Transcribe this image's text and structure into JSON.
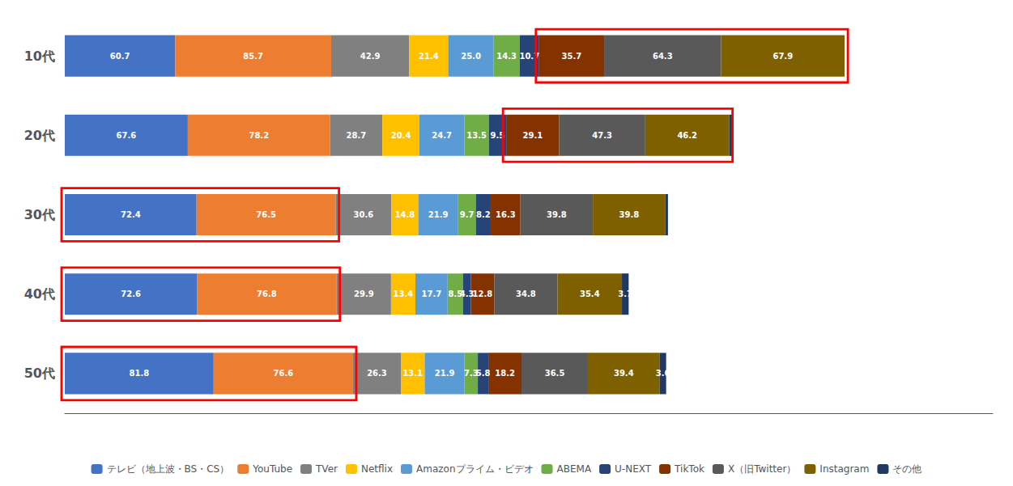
{
  "chart_data": {
    "type": "bar",
    "orientation": "horizontal",
    "stacked": true,
    "categories": [
      "10代",
      "20代",
      "30代",
      "40代",
      "50代"
    ],
    "series": [
      {
        "name": "テレビ（地上波・BS・CS）",
        "color": "#4472C4",
        "values": [
          60.7,
          67.6,
          72.4,
          72.6,
          81.8
        ],
        "value_labels": [
          "60.7",
          "67.6",
          "72.4",
          "72.6",
          "81.8"
        ]
      },
      {
        "name": "YouTube",
        "color": "#ED7D31",
        "values": [
          85.7,
          78.2,
          76.5,
          76.8,
          76.6
        ],
        "value_labels": [
          "85.7",
          "78.2",
          "76.5",
          "76.8",
          "76.6"
        ]
      },
      {
        "name": "TVer",
        "color": "#808080",
        "values": [
          42.9,
          28.7,
          30.6,
          29.9,
          26.3
        ],
        "value_labels": [
          "42.9",
          "28.7",
          "30.6",
          "29.9",
          "26.3"
        ]
      },
      {
        "name": "Netflix",
        "color": "#FFC000",
        "values": [
          21.4,
          20.4,
          14.8,
          13.4,
          13.1
        ],
        "value_labels": [
          "21.4",
          "20.4",
          "14.8",
          "13.4",
          "13.1"
        ]
      },
      {
        "name": "Amazonプライム・ビデオ",
        "color": "#5B9BD5",
        "values": [
          25.0,
          24.7,
          21.9,
          17.7,
          21.9
        ],
        "value_labels": [
          "25.0",
          "24.7",
          "21.9",
          "17.7",
          "21.9"
        ]
      },
      {
        "name": "ABEMA",
        "color": "#70AD47",
        "values": [
          14.3,
          13.5,
          9.7,
          8.5,
          7.3
        ],
        "value_labels": [
          "14.3",
          "13.5",
          "9.7",
          "8.5",
          "7.3"
        ]
      },
      {
        "name": "U-NEXT",
        "color": "#264478",
        "values": [
          10.7,
          9.5,
          8.2,
          4.3,
          5.8
        ],
        "value_labels": [
          "10.7",
          "9.5",
          "8.2",
          "4.3",
          "5.8"
        ]
      },
      {
        "name": "TikTok",
        "color": "#833200",
        "values": [
          35.7,
          29.1,
          16.3,
          12.8,
          18.2
        ],
        "value_labels": [
          "35.7",
          "29.1",
          "16.3",
          "12.8",
          "18.2"
        ]
      },
      {
        "name": "X（旧Twitter）",
        "color": "#595959",
        "values": [
          64.3,
          47.3,
          39.8,
          34.8,
          36.5
        ],
        "value_labels": [
          "64.3",
          "47.3",
          "39.8",
          "34.8",
          "36.5"
        ]
      },
      {
        "name": "Instagram",
        "color": "#7F6000",
        "values": [
          67.9,
          46.2,
          39.8,
          35.4,
          39.4
        ],
        "value_labels": [
          "67.9",
          "46.2",
          "39.8",
          "35.4",
          "39.4"
        ]
      },
      {
        "name": "その他",
        "color": "#1F3864",
        "values": [
          0.0,
          1.8,
          1.5,
          3.7,
          3.6
        ],
        "value_labels": [
          null,
          null,
          null,
          "3.7",
          "3.6"
        ]
      }
    ],
    "xlim": [
      0,
      510
    ],
    "tick_labels": "y",
    "grid": false,
    "legend": "bottom",
    "data_labels": true,
    "highlights": [
      {
        "category": "10代",
        "series": [
          "TikTok",
          "X（旧Twitter）",
          "Instagram"
        ],
        "color": "#FF0000"
      },
      {
        "category": "20代",
        "series": [
          "TikTok",
          "X（旧Twitter）",
          "Instagram"
        ],
        "color": "#FF0000"
      },
      {
        "category": "30代",
        "series": [
          "テレビ（地上波・BS・CS）",
          "YouTube"
        ],
        "color": "#FF0000"
      },
      {
        "category": "40代",
        "series": [
          "テレビ（地上波・BS・CS）",
          "YouTube"
        ],
        "color": "#FF0000"
      },
      {
        "category": "50代",
        "series": [
          "テレビ（地上波・BS・CS）",
          "YouTube"
        ],
        "color": "#FF0000"
      }
    ]
  }
}
